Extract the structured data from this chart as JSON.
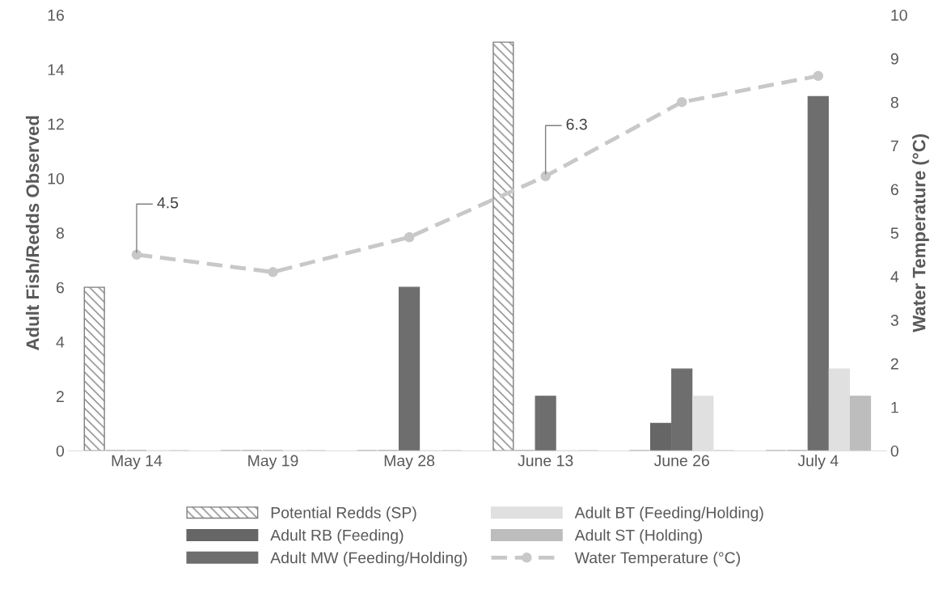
{
  "chart_data": {
    "type": "bar",
    "categories": [
      "May 14",
      "May 19",
      "May 28",
      "June 13",
      "June 26",
      "July 4"
    ],
    "ylabel": "Adult Fish/Redds Observed",
    "y2label": "Water Temperature (°C)",
    "ylim": [
      0,
      16
    ],
    "yticks": [
      0,
      2,
      4,
      6,
      8,
      10,
      12,
      14,
      16
    ],
    "y2lim": [
      0,
      10
    ],
    "y2ticks": [
      0,
      1,
      2,
      3,
      4,
      5,
      6,
      7,
      8,
      9,
      10
    ],
    "legend": "bottom",
    "grid": false,
    "series": [
      {
        "name": "Potential Redds (SP)",
        "color": "#7f7f7f",
        "values": [
          6,
          0,
          0,
          15,
          0,
          0
        ]
      },
      {
        "name": "Adult RB (Feeding)",
        "color": "#666666",
        "values": [
          0,
          0,
          0,
          0,
          1,
          0
        ]
      },
      {
        "name": "Adult MW (Feeding/Holding)",
        "color": "#6e6e6e",
        "values": [
          0,
          0,
          6,
          2,
          3,
          13
        ]
      },
      {
        "name": "Adult BT (Feeding/Holding)",
        "color": "#e0e0e0",
        "values": [
          0,
          0,
          0,
          0,
          2,
          3
        ]
      },
      {
        "name": "Adult ST (Holding)",
        "color": "#bdbdbd",
        "values": [
          0,
          0,
          0,
          0,
          0,
          2
        ]
      },
      {
        "name": "Water Temperature (°C)",
        "type": "line",
        "axis": "y2",
        "color": "#c8c8c8",
        "marker": "circle",
        "line_style": "dashed",
        "values": [
          4.5,
          4.1,
          4.9,
          6.3,
          8.0,
          8.6
        ],
        "value_labels": [
          "4.5",
          null,
          null,
          "6.3",
          null,
          null
        ]
      }
    ]
  }
}
